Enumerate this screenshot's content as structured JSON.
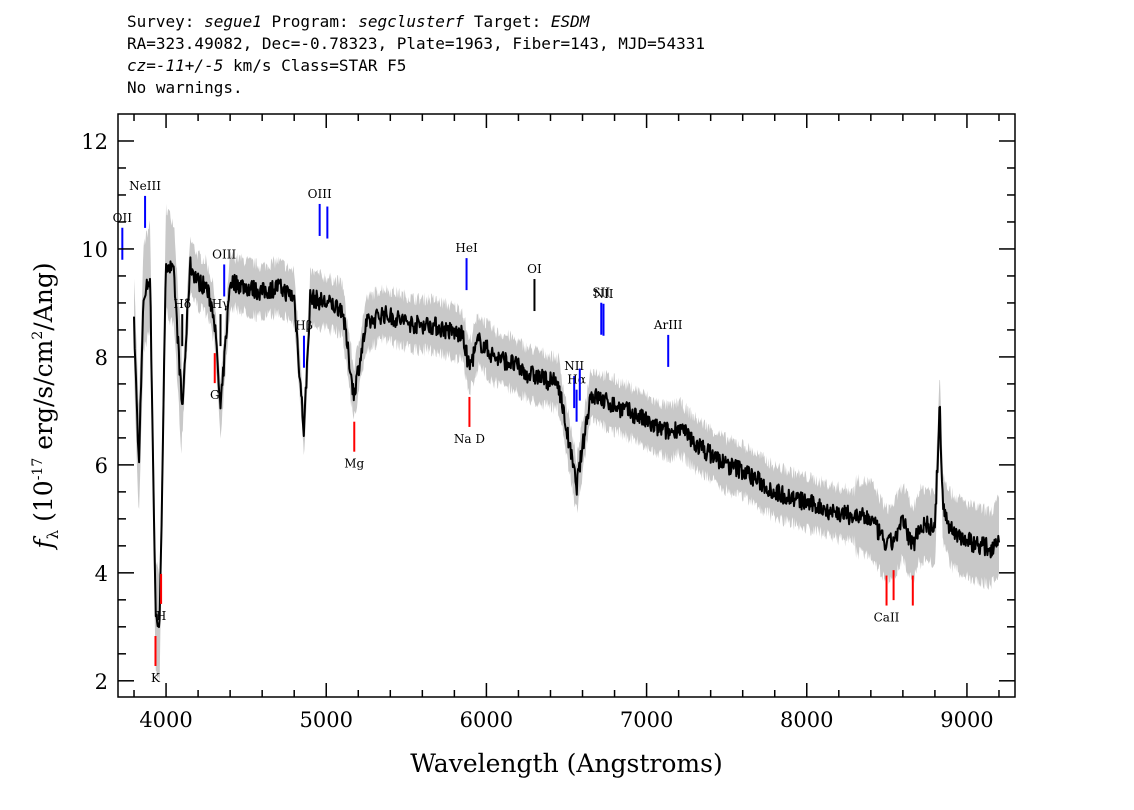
{
  "header": {
    "line1": {
      "survey_label": "Survey:",
      "survey": "segue1",
      "program_label": "Program:",
      "program": "segclusterf",
      "target_label": "Target:",
      "target": "ESDM"
    },
    "line2": "RA=323.49082, Dec=-0.78323, Plate=1963, Fiber=143, MJD=54331",
    "line3": {
      "cz": "cz=-11+/-5",
      "rest": " km/s Class=STAR F5"
    },
    "line4": "No warnings."
  },
  "chart_data": {
    "type": "line",
    "xlabel": "Wavelength (Angstroms)",
    "ylabel": "f_λ (10^-17 erg/s/cm^2/Ang)",
    "xlim": [
      3700,
      9300
    ],
    "ylim": [
      1.7,
      12.5
    ],
    "xticks": [
      4000,
      5000,
      6000,
      7000,
      8000,
      9000
    ],
    "yticks": [
      2,
      4,
      6,
      8,
      10,
      12
    ],
    "grid": false,
    "colors": {
      "flux": "#000000",
      "error_band": "#c8c8c8",
      "emission": "#0000ff",
      "absorption": "#ff0000"
    },
    "series": [
      {
        "style": "black line (smoothed flux)",
        "x": [
          3800,
          3830,
          3860,
          3900,
          3935,
          3960,
          4000,
          4050,
          4101,
          4150,
          4200,
          4250,
          4300,
          4340,
          4400,
          4500,
          4600,
          4700,
          4800,
          4861,
          4900,
          5000,
          5100,
          5172,
          5250,
          5350,
          5450,
          5550,
          5650,
          5750,
          5850,
          5893,
          5950,
          6050,
          6150,
          6250,
          6350,
          6450,
          6563,
          6650,
          6800,
          6950,
          7050,
          7150,
          7200,
          7300,
          7400,
          7500,
          7600,
          7700,
          7800,
          7900,
          8000,
          8100,
          8200,
          8300,
          8400,
          8498,
          8542,
          8600,
          8662,
          8700,
          8750,
          8800,
          8830,
          8850,
          8900,
          8950,
          9000,
          9050,
          9100,
          9150,
          9200
        ],
        "y": [
          8.6,
          6.0,
          9.1,
          9.5,
          3.2,
          3.0,
          9.8,
          9.5,
          7.0,
          9.7,
          9.4,
          9.3,
          8.8,
          7.0,
          9.4,
          9.3,
          9.2,
          9.3,
          9.1,
          6.6,
          9.1,
          9.0,
          8.9,
          7.3,
          8.6,
          8.8,
          8.7,
          8.6,
          8.6,
          8.5,
          8.4,
          7.8,
          8.3,
          8.0,
          7.9,
          7.7,
          7.6,
          7.5,
          5.6,
          7.3,
          7.1,
          6.9,
          6.7,
          6.6,
          6.7,
          6.4,
          6.2,
          6.0,
          5.9,
          5.7,
          5.5,
          5.4,
          5.3,
          5.2,
          5.1,
          5.05,
          5.0,
          4.5,
          4.6,
          4.95,
          4.5,
          4.85,
          4.9,
          4.8,
          7.1,
          5.2,
          4.8,
          4.7,
          4.6,
          4.55,
          4.5,
          4.45,
          4.7
        ]
      }
    ],
    "emission_lines": [
      {
        "label": "OII",
        "x": 3727
      },
      {
        "label": "NeIII",
        "x": 3869
      },
      {
        "label": "Hδ",
        "x": 4101
      },
      {
        "label": "Hγ",
        "x": 4340
      },
      {
        "label": "OIII",
        "x": 4363
      },
      {
        "label": "Hβ",
        "x": 4861
      },
      {
        "label": "OIII",
        "x": 4959
      },
      {
        "label": "",
        "x": 5007
      },
      {
        "label": "HeI",
        "x": 5876
      },
      {
        "label": "OI",
        "x": 6300
      },
      {
        "label": "NII",
        "x": 6548
      },
      {
        "label": "Hα",
        "x": 6563
      },
      {
        "label": "",
        "x": 6583
      },
      {
        "label": "SII",
        "x": 6717
      },
      {
        "label": "NII",
        "x": 6731
      },
      {
        "label": "ArIII",
        "x": 7135
      }
    ],
    "absorption_lines": [
      {
        "label": "K",
        "x": 3934
      },
      {
        "label": "H",
        "x": 3969
      },
      {
        "label": "G",
        "x": 4304
      },
      {
        "label": "Mg",
        "x": 5175
      },
      {
        "label": "Na D",
        "x": 5894
      },
      {
        "label": "CaII",
        "x": 8498
      },
      {
        "label": "",
        "x": 8542
      },
      {
        "label": "",
        "x": 8662
      }
    ]
  }
}
